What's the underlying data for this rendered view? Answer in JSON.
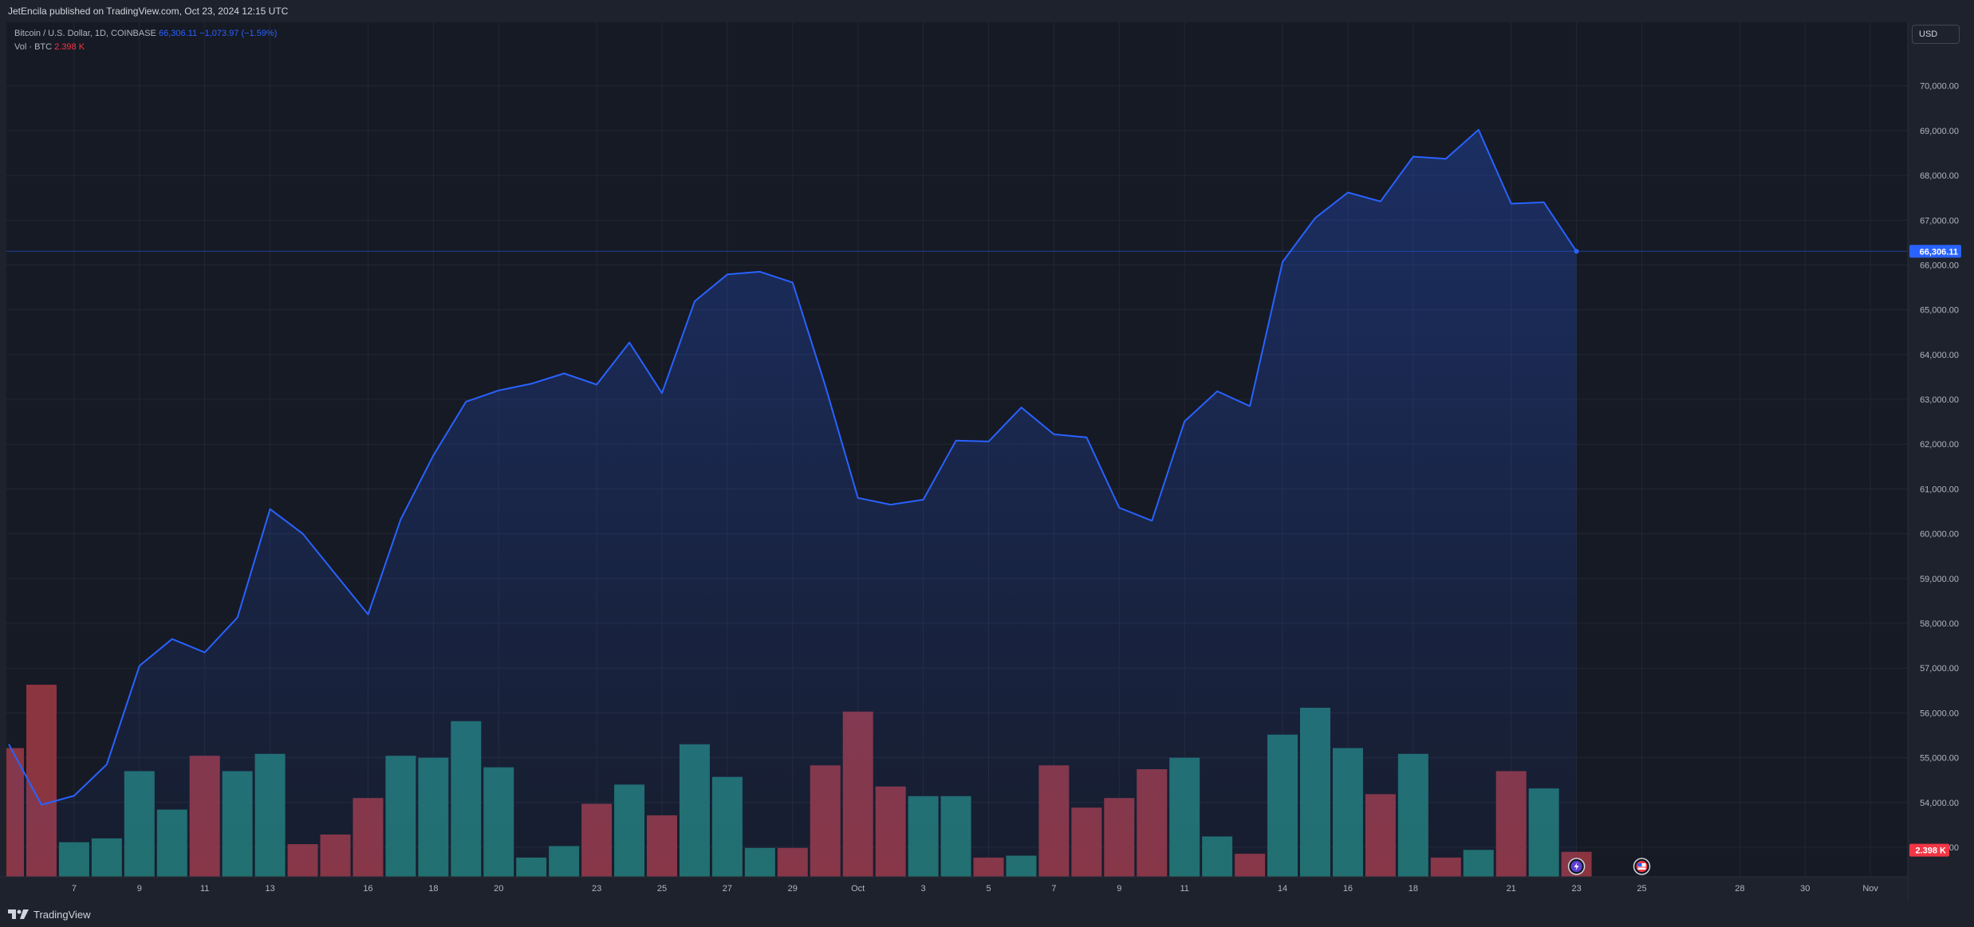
{
  "header": {
    "published_text": "JetEncila published on TradingView.com, Oct 23, 2024 12:15 UTC"
  },
  "legend": {
    "symbol": "Bitcoin / U.S. Dollar, 1D, COINBASE",
    "last": "66,306.11",
    "change": "−1,073.97 (−1.59%)",
    "vol_label": "Vol · BTC",
    "vol_value": "2.398 K"
  },
  "price_axis": {
    "currency": "USD",
    "last_price_label": "66,306.11",
    "last_volume_label": "2.398 K"
  },
  "footer": {
    "brand": "TradingView"
  },
  "colors": {
    "line": "#2962ff",
    "up_volume": "#22706b",
    "down_volume": "#8b3540",
    "background": "#161a25",
    "volume_badge": "#f23645"
  },
  "chart_data": {
    "type": "area",
    "title": "Bitcoin / U.S. Dollar, 1D, COINBASE",
    "x_tick_labels": [
      "7",
      "9",
      "11",
      "13",
      "16",
      "18",
      "20",
      "23",
      "25",
      "27",
      "29",
      "Oct",
      "3",
      "5",
      "7",
      "9",
      "11",
      "14",
      "16",
      "18",
      "21",
      "23",
      "25",
      "28",
      "30",
      "Nov"
    ],
    "y_tick_labels": [
      "70,000.00",
      "69,000.00",
      "68,000.00",
      "67,000.00",
      "66,000.00",
      "65,000.00",
      "64,000.00",
      "63,000.00",
      "62,000.00",
      "61,000.00",
      "60,000.00",
      "59,000.00",
      "58,000.00",
      "57,000.00",
      "56,000.00",
      "55,000.00",
      "54,000.00",
      "53,000.00"
    ],
    "ylim": [
      52430,
      70600
    ],
    "x_tick_dates": [
      {
        "label": "7",
        "date": "2024-09-07"
      },
      {
        "label": "9",
        "date": "2024-09-09"
      },
      {
        "label": "11",
        "date": "2024-09-11"
      },
      {
        "label": "13",
        "date": "2024-09-13"
      },
      {
        "label": "16",
        "date": "2024-09-16"
      },
      {
        "label": "18",
        "date": "2024-09-18"
      },
      {
        "label": "20",
        "date": "2024-09-20"
      },
      {
        "label": "23",
        "date": "2024-09-23"
      },
      {
        "label": "25",
        "date": "2024-09-25"
      },
      {
        "label": "27",
        "date": "2024-09-27"
      },
      {
        "label": "29",
        "date": "2024-09-29"
      },
      {
        "label": "Oct",
        "date": "2024-10-01"
      },
      {
        "label": "3",
        "date": "2024-10-03"
      },
      {
        "label": "5",
        "date": "2024-10-05"
      },
      {
        "label": "7",
        "date": "2024-10-07"
      },
      {
        "label": "9",
        "date": "2024-10-09"
      },
      {
        "label": "11",
        "date": "2024-10-11"
      },
      {
        "label": "14",
        "date": "2024-10-14"
      },
      {
        "label": "16",
        "date": "2024-10-16"
      },
      {
        "label": "18",
        "date": "2024-10-18"
      },
      {
        "label": "21",
        "date": "2024-10-21"
      },
      {
        "label": "23",
        "date": "2024-10-23"
      },
      {
        "label": "25",
        "date": "2024-10-25"
      },
      {
        "label": "28",
        "date": "2024-10-28"
      },
      {
        "label": "30",
        "date": "2024-10-30"
      },
      {
        "label": "Nov",
        "date": "2024-11-01"
      }
    ],
    "series": [
      {
        "name": "Bitcoin / U.S. Dollar",
        "type": "line",
        "points": [
          {
            "date": "2024-09-05",
            "close": 55300
          },
          {
            "date": "2024-09-06",
            "close": 53950
          },
          {
            "date": "2024-09-07",
            "close": 54150
          },
          {
            "date": "2024-09-08",
            "close": 54850
          },
          {
            "date": "2024-09-09",
            "close": 57050
          },
          {
            "date": "2024-09-10",
            "close": 57650
          },
          {
            "date": "2024-09-11",
            "close": 57350
          },
          {
            "date": "2024-09-12",
            "close": 58130
          },
          {
            "date": "2024-09-13",
            "close": 60550
          },
          {
            "date": "2024-09-14",
            "close": 60000
          },
          {
            "date": "2024-09-15",
            "close": 59100
          },
          {
            "date": "2024-09-16",
            "close": 58200
          },
          {
            "date": "2024-09-17",
            "close": 60320
          },
          {
            "date": "2024-09-18",
            "close": 61750
          },
          {
            "date": "2024-09-19",
            "close": 62950
          },
          {
            "date": "2024-09-20",
            "close": 63200
          },
          {
            "date": "2024-09-21",
            "close": 63350
          },
          {
            "date": "2024-09-22",
            "close": 63580
          },
          {
            "date": "2024-09-23",
            "close": 63330
          },
          {
            "date": "2024-09-24",
            "close": 64270
          },
          {
            "date": "2024-09-25",
            "close": 63140
          },
          {
            "date": "2024-09-26",
            "close": 65190
          },
          {
            "date": "2024-09-27",
            "close": 65790
          },
          {
            "date": "2024-09-28",
            "close": 65850
          },
          {
            "date": "2024-09-29",
            "close": 65610
          },
          {
            "date": "2024-09-30",
            "close": 63300
          },
          {
            "date": "2024-10-01",
            "close": 60800
          },
          {
            "date": "2024-10-02",
            "close": 60650
          },
          {
            "date": "2024-10-03",
            "close": 60760
          },
          {
            "date": "2024-10-04",
            "close": 62080
          },
          {
            "date": "2024-10-05",
            "close": 62060
          },
          {
            "date": "2024-10-06",
            "close": 62820
          },
          {
            "date": "2024-10-07",
            "close": 62220
          },
          {
            "date": "2024-10-08",
            "close": 62150
          },
          {
            "date": "2024-10-09",
            "close": 60580
          },
          {
            "date": "2024-10-10",
            "close": 60290
          },
          {
            "date": "2024-10-11",
            "close": 62510
          },
          {
            "date": "2024-10-12",
            "close": 63180
          },
          {
            "date": "2024-10-13",
            "close": 62850
          },
          {
            "date": "2024-10-14",
            "close": 66070
          },
          {
            "date": "2024-10-15",
            "close": 67050
          },
          {
            "date": "2024-10-16",
            "close": 67620
          },
          {
            "date": "2024-10-17",
            "close": 67420
          },
          {
            "date": "2024-10-18",
            "close": 68420
          },
          {
            "date": "2024-10-19",
            "close": 68370
          },
          {
            "date": "2024-10-20",
            "close": 69020
          },
          {
            "date": "2024-10-21",
            "close": 67370
          },
          {
            "date": "2024-10-22",
            "close": 67400
          },
          {
            "date": "2024-10-23",
            "close": 66306.11
          }
        ]
      },
      {
        "name": "Vol · BTC",
        "type": "bar",
        "note": "relative volume, 1.0 = tallest bar",
        "points": [
          {
            "date": "2024-09-05",
            "vol": 0.67,
            "dir": "down"
          },
          {
            "date": "2024-09-06",
            "vol": 1.0,
            "dir": "down"
          },
          {
            "date": "2024-09-07",
            "vol": 0.18,
            "dir": "up"
          },
          {
            "date": "2024-09-08",
            "vol": 0.2,
            "dir": "up"
          },
          {
            "date": "2024-09-09",
            "vol": 0.55,
            "dir": "up"
          },
          {
            "date": "2024-09-10",
            "vol": 0.35,
            "dir": "up"
          },
          {
            "date": "2024-09-11",
            "vol": 0.63,
            "dir": "down"
          },
          {
            "date": "2024-09-12",
            "vol": 0.55,
            "dir": "up"
          },
          {
            "date": "2024-09-13",
            "vol": 0.64,
            "dir": "up"
          },
          {
            "date": "2024-09-14",
            "vol": 0.17,
            "dir": "down"
          },
          {
            "date": "2024-09-15",
            "vol": 0.22,
            "dir": "down"
          },
          {
            "date": "2024-09-16",
            "vol": 0.41,
            "dir": "down"
          },
          {
            "date": "2024-09-17",
            "vol": 0.63,
            "dir": "up"
          },
          {
            "date": "2024-09-18",
            "vol": 0.62,
            "dir": "up"
          },
          {
            "date": "2024-09-19",
            "vol": 0.81,
            "dir": "up"
          },
          {
            "date": "2024-09-20",
            "vol": 0.57,
            "dir": "up"
          },
          {
            "date": "2024-09-21",
            "vol": 0.1,
            "dir": "up"
          },
          {
            "date": "2024-09-22",
            "vol": 0.16,
            "dir": "up"
          },
          {
            "date": "2024-09-23",
            "vol": 0.38,
            "dir": "down"
          },
          {
            "date": "2024-09-24",
            "vol": 0.48,
            "dir": "up"
          },
          {
            "date": "2024-09-25",
            "vol": 0.32,
            "dir": "down"
          },
          {
            "date": "2024-09-26",
            "vol": 0.69,
            "dir": "up"
          },
          {
            "date": "2024-09-27",
            "vol": 0.52,
            "dir": "up"
          },
          {
            "date": "2024-09-28",
            "vol": 0.15,
            "dir": "up"
          },
          {
            "date": "2024-09-29",
            "vol": 0.15,
            "dir": "down"
          },
          {
            "date": "2024-09-30",
            "vol": 0.58,
            "dir": "down"
          },
          {
            "date": "2024-10-01",
            "vol": 0.86,
            "dir": "down"
          },
          {
            "date": "2024-10-02",
            "vol": 0.47,
            "dir": "down"
          },
          {
            "date": "2024-10-03",
            "vol": 0.42,
            "dir": "up"
          },
          {
            "date": "2024-10-04",
            "vol": 0.42,
            "dir": "up"
          },
          {
            "date": "2024-10-05",
            "vol": 0.1,
            "dir": "down"
          },
          {
            "date": "2024-10-06",
            "vol": 0.11,
            "dir": "up"
          },
          {
            "date": "2024-10-07",
            "vol": 0.58,
            "dir": "down"
          },
          {
            "date": "2024-10-08",
            "vol": 0.36,
            "dir": "down"
          },
          {
            "date": "2024-10-09",
            "vol": 0.41,
            "dir": "down"
          },
          {
            "date": "2024-10-10",
            "vol": 0.56,
            "dir": "down"
          },
          {
            "date": "2024-10-11",
            "vol": 0.62,
            "dir": "up"
          },
          {
            "date": "2024-10-12",
            "vol": 0.21,
            "dir": "up"
          },
          {
            "date": "2024-10-13",
            "vol": 0.12,
            "dir": "down"
          },
          {
            "date": "2024-10-14",
            "vol": 0.74,
            "dir": "up"
          },
          {
            "date": "2024-10-15",
            "vol": 0.88,
            "dir": "up"
          },
          {
            "date": "2024-10-16",
            "vol": 0.67,
            "dir": "up"
          },
          {
            "date": "2024-10-17",
            "vol": 0.43,
            "dir": "down"
          },
          {
            "date": "2024-10-18",
            "vol": 0.64,
            "dir": "up"
          },
          {
            "date": "2024-10-19",
            "vol": 0.1,
            "dir": "down"
          },
          {
            "date": "2024-10-20",
            "vol": 0.14,
            "dir": "up"
          },
          {
            "date": "2024-10-21",
            "vol": 0.55,
            "dir": "down"
          },
          {
            "date": "2024-10-22",
            "vol": 0.46,
            "dir": "up"
          },
          {
            "date": "2024-10-23",
            "vol": 0.13,
            "dir": "down"
          }
        ]
      }
    ],
    "events": [
      {
        "date": "2024-10-23",
        "icon": "lightning-icon"
      },
      {
        "date": "2024-10-25",
        "icon": "us-flag-icon"
      }
    ],
    "grid": true,
    "legend_position": "top-left"
  }
}
